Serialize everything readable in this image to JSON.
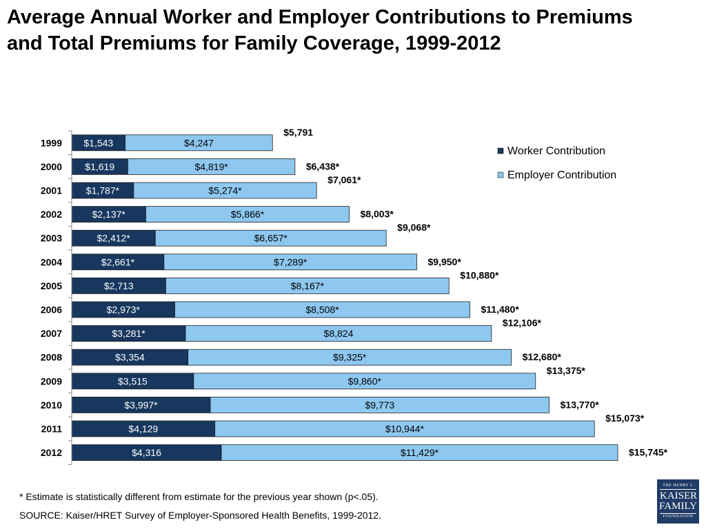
{
  "title": "Average Annual Worker and Employer Contributions to Premiums and Total Premiums for Family Coverage, 1999-2012",
  "footnote": "* Estimate is statistically different from estimate for the previous year shown (p<.05).",
  "source": "SOURCE:  Kaiser/HRET Survey of Employer-Sponsored Health Benefits, 1999-2012.",
  "logo": {
    "line1": "THE HENRY J.",
    "line2": "KAISER",
    "line3": "FAMILY",
    "line4": "FOUNDATION"
  },
  "colors": {
    "worker": "#17375e",
    "employer": "#8ec8f0",
    "border": "#1f1f1f"
  },
  "chart_data": {
    "type": "bar",
    "orientation": "horizontal",
    "stacked": true,
    "categories": [
      "1999",
      "2000",
      "2001",
      "2002",
      "2003",
      "2004",
      "2005",
      "2006",
      "2007",
      "2008",
      "2009",
      "2010",
      "2011",
      "2012"
    ],
    "series": [
      {
        "name": "Worker Contribution",
        "values": [
          1543,
          1619,
          1787,
          2137,
          2412,
          2661,
          2713,
          2973,
          3281,
          3354,
          3515,
          3997,
          4129,
          4316
        ],
        "labels": [
          "$1,543",
          "$1,619",
          "$1,787*",
          "$2,137*",
          "$2,412*",
          "$2,661*",
          "$2,713",
          "$2,973*",
          "$3,281*",
          "$3,354",
          "$3,515",
          "$3,997*",
          "$4,129",
          "$4,316"
        ]
      },
      {
        "name": "Employer Contribution",
        "values": [
          4247,
          4819,
          5274,
          5866,
          6657,
          7289,
          8167,
          8508,
          8824,
          9325,
          9860,
          9773,
          10944,
          11429
        ],
        "labels": [
          "$4,247",
          "$4,819*",
          "$5,274*",
          "$5,866*",
          "$6,657*",
          "$7,289*",
          "$8,167*",
          "$8,508*",
          "$8,824",
          "$9,325*",
          "$9,860*",
          "$9,773",
          "$10,944*",
          "$11,429*"
        ]
      }
    ],
    "totals": [
      "$5,791",
      "$6,438*",
      "$7,061*",
      "$8,003*",
      "$9,068*",
      "$9,950*",
      "$10,880*",
      "$11,480*",
      "$12,106*",
      "$12,680*",
      "$13,375*",
      "$13,770*",
      "$15,073*",
      "$15,745*"
    ],
    "xlim": [
      0,
      15745
    ],
    "grid": false,
    "legend": "top-right"
  }
}
